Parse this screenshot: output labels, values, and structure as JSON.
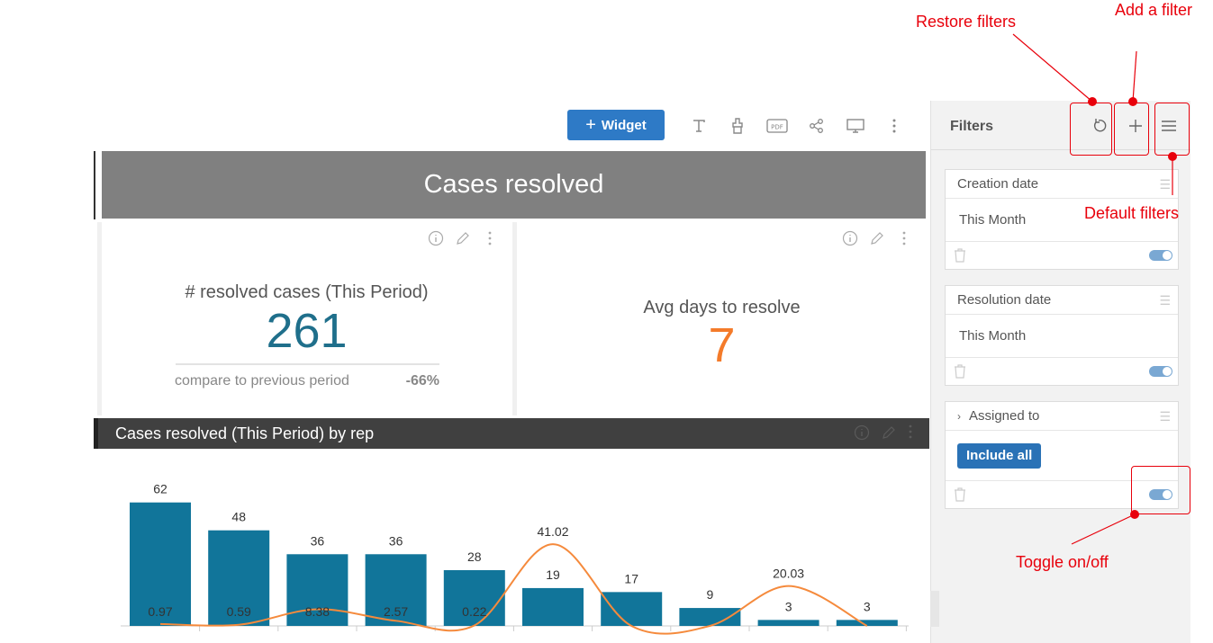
{
  "toolbar": {
    "widget_label": "Widget",
    "icons": [
      "text-icon",
      "paint-brush-icon",
      "pdf-icon",
      "share-icon",
      "monitor-icon",
      "more-vertical-icon"
    ]
  },
  "dashboard": {
    "title": "Cases resolved",
    "kpi1": {
      "title": "# resolved cases (This Period)",
      "value": "261",
      "value_color": "#1f6f8b",
      "compare_label": "compare to previous period",
      "compare_value": "-66%"
    },
    "kpi2": {
      "title": "Avg days to resolve",
      "value": "7",
      "value_color": "#f47b2a"
    },
    "chart_header": "Cases resolved (This Period) by rep"
  },
  "chart_data": {
    "type": "bar",
    "categories": [
      "",
      "",
      "",
      "",
      "",
      "",
      "",
      "",
      "",
      ""
    ],
    "series": [
      {
        "type": "bar",
        "color": "#11759a",
        "values": [
          62,
          48,
          36,
          36,
          28,
          19,
          17,
          9,
          3,
          3
        ]
      },
      {
        "type": "line",
        "color": "#f58a3c",
        "values": [
          0.97,
          0.59,
          8.38,
          2.57,
          0.22,
          41.02,
          0,
          0,
          20.03,
          0
        ]
      }
    ],
    "bar_labels": [
      "62",
      "48",
      "36",
      "36",
      "28",
      "19",
      "17",
      "9",
      "3",
      "3"
    ],
    "line_labels": [
      "0.97",
      "0.59",
      "8.38",
      "2.57",
      "0.22",
      "41.02",
      "",
      "",
      "20.03",
      ""
    ],
    "ylim": [
      0,
      70
    ],
    "grid": false
  },
  "filters": {
    "title": "Filters",
    "icons": [
      "restore-icon",
      "plus-icon",
      "menu-icon"
    ],
    "items": [
      {
        "name": "Creation date",
        "value": "This Month",
        "enabled": true
      },
      {
        "name": "Resolution date",
        "value": "This Month",
        "enabled": true
      },
      {
        "name": "Assigned to",
        "button": "Include all",
        "enabled": true
      }
    ]
  },
  "annotations": {
    "restore": "Restore filters",
    "add": "Add a filter",
    "default": "Default filters",
    "toggle": "Toggle on/off",
    "color": "#e8000b"
  }
}
